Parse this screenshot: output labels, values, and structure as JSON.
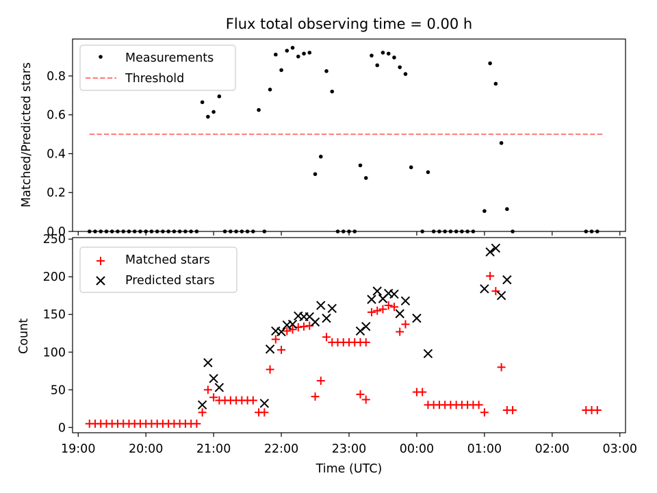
{
  "chart_data": [
    {
      "type": "scatter",
      "title": "Flux total observing time = 0.00 h",
      "ylabel": "Matched/Predicted stars",
      "xlabel": "",
      "ylim": [
        0,
        0.99
      ],
      "yticks": [
        0.0,
        0.2,
        0.4,
        0.6,
        0.8
      ],
      "ytick_labels": [
        "0.0",
        "0.2",
        "0.4",
        "0.6",
        "0.8"
      ],
      "legend": {
        "position": "upper-left",
        "entries": [
          "Measurements",
          "Threshold"
        ]
      },
      "series": [
        {
          "name": "Measurements",
          "marker": "dot",
          "color": "#000000",
          "points": [
            [
              "19:10",
              0
            ],
            [
              "19:15",
              0
            ],
            [
              "19:20",
              0
            ],
            [
              "19:25",
              0
            ],
            [
              "19:30",
              0
            ],
            [
              "19:35",
              0
            ],
            [
              "19:40",
              0
            ],
            [
              "19:45",
              0
            ],
            [
              "19:50",
              0
            ],
            [
              "19:55",
              0
            ],
            [
              "20:00",
              0
            ],
            [
              "20:05",
              0
            ],
            [
              "20:10",
              0
            ],
            [
              "20:15",
              0
            ],
            [
              "20:20",
              0
            ],
            [
              "20:25",
              0
            ],
            [
              "20:30",
              0
            ],
            [
              "20:35",
              0
            ],
            [
              "20:40",
              0
            ],
            [
              "20:45",
              0
            ],
            [
              "20:50",
              0.665
            ],
            [
              "20:55",
              0.59
            ],
            [
              "21:00",
              0.615
            ],
            [
              "21:05",
              0.695
            ],
            [
              "21:10",
              0
            ],
            [
              "21:15",
              0
            ],
            [
              "21:20",
              0
            ],
            [
              "21:25",
              0
            ],
            [
              "21:30",
              0
            ],
            [
              "21:35",
              0
            ],
            [
              "21:40",
              0.625
            ],
            [
              "21:45",
              0
            ],
            [
              "21:50",
              0.73
            ],
            [
              "21:55",
              0.91
            ],
            [
              "22:00",
              0.83
            ],
            [
              "22:05",
              0.93
            ],
            [
              "22:10",
              0.945
            ],
            [
              "22:15",
              0.9
            ],
            [
              "22:20",
              0.915
            ],
            [
              "22:25",
              0.92
            ],
            [
              "22:30",
              0.295
            ],
            [
              "22:35",
              0.385
            ],
            [
              "22:40",
              0.825
            ],
            [
              "22:45",
              0.72
            ],
            [
              "22:50",
              0
            ],
            [
              "22:55",
              0
            ],
            [
              "23:00",
              0
            ],
            [
              "23:05",
              0
            ],
            [
              "23:10",
              0.34
            ],
            [
              "23:15",
              0.275
            ],
            [
              "23:20",
              0.905
            ],
            [
              "23:25",
              0.855
            ],
            [
              "23:30",
              0.92
            ],
            [
              "23:35",
              0.915
            ],
            [
              "23:40",
              0.895
            ],
            [
              "23:45",
              0.845
            ],
            [
              "23:50",
              0.81
            ],
            [
              "23:55",
              0.33
            ],
            [
              "00:05",
              0
            ],
            [
              "00:10",
              0.305
            ],
            [
              "00:15",
              0
            ],
            [
              "00:20",
              0
            ],
            [
              "00:25",
              0
            ],
            [
              "00:30",
              0
            ],
            [
              "00:35",
              0
            ],
            [
              "00:40",
              0
            ],
            [
              "00:45",
              0
            ],
            [
              "00:50",
              0
            ],
            [
              "01:00",
              0.105
            ],
            [
              "01:05",
              0.865
            ],
            [
              "01:10",
              0.76
            ],
            [
              "01:15",
              0.455
            ],
            [
              "01:20",
              0.115
            ],
            [
              "01:25",
              0
            ],
            [
              "02:30",
              0
            ],
            [
              "02:35",
              0
            ],
            [
              "02:40",
              0
            ]
          ]
        },
        {
          "name": "Threshold",
          "style": "dashed",
          "color": "#ff7f7f",
          "points": [
            [
              "19:10",
              0.5
            ],
            [
              "02:45",
              0.5
            ]
          ]
        }
      ]
    },
    {
      "type": "scatter",
      "title": "",
      "xlabel": "Time (UTC)",
      "ylabel": "Count",
      "ylim": [
        -7,
        252
      ],
      "yticks": [
        0,
        50,
        100,
        150,
        200,
        250
      ],
      "ytick_labels": [
        "0",
        "50",
        "100",
        "150",
        "200",
        "250"
      ],
      "xlim": [
        "18:55",
        "03:05"
      ],
      "xticks": [
        "19:00",
        "20:00",
        "21:00",
        "22:00",
        "23:00",
        "00:00",
        "01:00",
        "02:00",
        "03:00"
      ],
      "xtick_labels": [
        "19:00",
        "20:00",
        "21:00",
        "22:00",
        "23:00",
        "00:00",
        "01:00",
        "02:00",
        "03:00"
      ],
      "legend": {
        "position": "upper-left",
        "entries": [
          "Matched stars",
          "Predicted stars"
        ]
      },
      "series": [
        {
          "name": "Matched stars",
          "marker": "plus",
          "color": "#ff0000",
          "points": [
            [
              "19:10",
              5
            ],
            [
              "19:15",
              5
            ],
            [
              "19:20",
              5
            ],
            [
              "19:25",
              5
            ],
            [
              "19:30",
              5
            ],
            [
              "19:35",
              5
            ],
            [
              "19:40",
              5
            ],
            [
              "19:45",
              5
            ],
            [
              "19:50",
              5
            ],
            [
              "19:55",
              5
            ],
            [
              "20:00",
              5
            ],
            [
              "20:05",
              5
            ],
            [
              "20:10",
              5
            ],
            [
              "20:15",
              5
            ],
            [
              "20:20",
              5
            ],
            [
              "20:25",
              5
            ],
            [
              "20:30",
              5
            ],
            [
              "20:35",
              5
            ],
            [
              "20:40",
              5
            ],
            [
              "20:45",
              5
            ],
            [
              "20:50",
              20
            ],
            [
              "20:55",
              50
            ],
            [
              "21:00",
              40
            ],
            [
              "21:05",
              36
            ],
            [
              "21:10",
              36
            ],
            [
              "21:15",
              36
            ],
            [
              "21:20",
              36
            ],
            [
              "21:25",
              36
            ],
            [
              "21:30",
              36
            ],
            [
              "21:35",
              36
            ],
            [
              "21:40",
              20
            ],
            [
              "21:45",
              20
            ],
            [
              "21:50",
              77
            ],
            [
              "21:55",
              117
            ],
            [
              "22:00",
              103
            ],
            [
              "22:05",
              128
            ],
            [
              "22:10",
              130
            ],
            [
              "22:15",
              133
            ],
            [
              "22:20",
              134
            ],
            [
              "22:25",
              135
            ],
            [
              "22:30",
              41
            ],
            [
              "22:35",
              62
            ],
            [
              "22:40",
              120
            ],
            [
              "22:45",
              113
            ],
            [
              "22:50",
              113
            ],
            [
              "22:55",
              113
            ],
            [
              "23:00",
              113
            ],
            [
              "23:05",
              113
            ],
            [
              "23:10",
              113
            ],
            [
              "23:15",
              113
            ],
            [
              "23:10",
              44
            ],
            [
              "23:15",
              37
            ],
            [
              "23:20",
              153
            ],
            [
              "23:25",
              155
            ],
            [
              "23:30",
              157
            ],
            [
              "23:35",
              162
            ],
            [
              "23:40",
              160
            ],
            [
              "23:45",
              127
            ],
            [
              "23:50",
              137
            ],
            [
              "00:00",
              47
            ],
            [
              "00:05",
              47
            ],
            [
              "00:10",
              30
            ],
            [
              "00:15",
              30
            ],
            [
              "00:20",
              30
            ],
            [
              "00:25",
              30
            ],
            [
              "00:30",
              30
            ],
            [
              "00:35",
              30
            ],
            [
              "00:40",
              30
            ],
            [
              "00:45",
              30
            ],
            [
              "00:50",
              30
            ],
            [
              "00:55",
              30
            ],
            [
              "01:00",
              20
            ],
            [
              "01:05",
              201
            ],
            [
              "01:10",
              181
            ],
            [
              "01:15",
              80
            ],
            [
              "01:20",
              23
            ],
            [
              "01:25",
              23
            ],
            [
              "02:30",
              23
            ],
            [
              "02:35",
              23
            ],
            [
              "02:40",
              23
            ]
          ]
        },
        {
          "name": "Predicted stars",
          "marker": "x",
          "color": "#000000",
          "points": [
            [
              "20:50",
              30
            ],
            [
              "20:55",
              86
            ],
            [
              "21:00",
              65
            ],
            [
              "21:05",
              53
            ],
            [
              "21:45",
              32
            ],
            [
              "21:50",
              104
            ],
            [
              "21:55",
              128
            ],
            [
              "22:00",
              127
            ],
            [
              "22:05",
              136
            ],
            [
              "22:10",
              137
            ],
            [
              "22:15",
              148
            ],
            [
              "22:20",
              147
            ],
            [
              "22:25",
              147
            ],
            [
              "22:30",
              140
            ],
            [
              "22:35",
              162
            ],
            [
              "22:40",
              145
            ],
            [
              "22:45",
              158
            ],
            [
              "23:10",
              128
            ],
            [
              "23:15",
              134
            ],
            [
              "23:20",
              170
            ],
            [
              "23:25",
              181
            ],
            [
              "23:30",
              171
            ],
            [
              "23:35",
              178
            ],
            [
              "23:40",
              177
            ],
            [
              "23:45",
              151
            ],
            [
              "23:50",
              168
            ],
            [
              "00:00",
              145
            ],
            [
              "00:10",
              98
            ],
            [
              "01:00",
              184
            ],
            [
              "01:05",
              233
            ],
            [
              "01:10",
              238
            ],
            [
              "01:15",
              175
            ],
            [
              "01:20",
              196
            ]
          ]
        }
      ]
    }
  ]
}
